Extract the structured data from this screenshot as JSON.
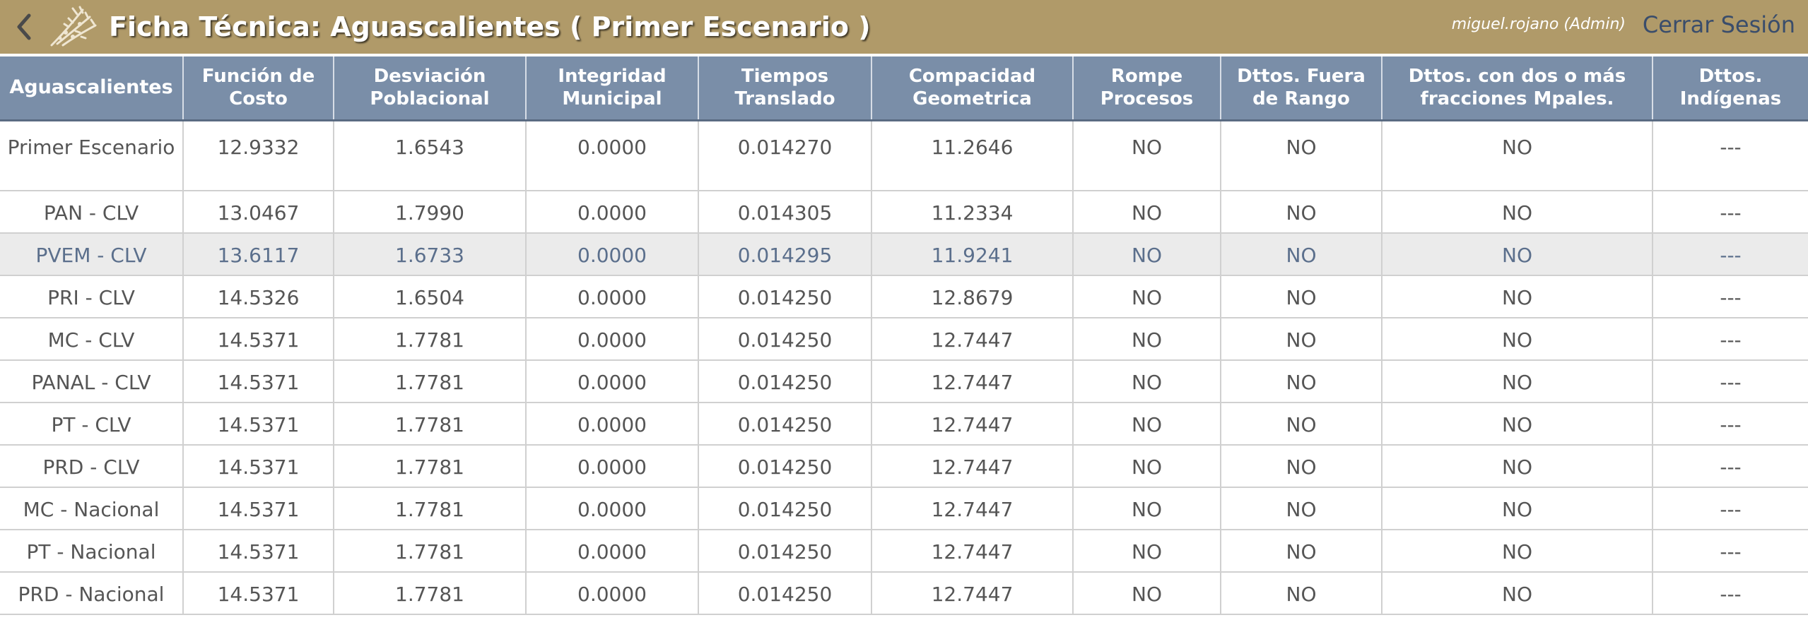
{
  "header": {
    "title": "Ficha Técnica: Aguascalientes ( Primer Escenario )",
    "user": "miguel.rojano (Admin)",
    "logout": "Cerrar Sesión",
    "back_icon": "chevron-left-icon",
    "logo_icon": "logo-icon",
    "bar_color": "#b09a69"
  },
  "table": {
    "header_color": "#7a8ea8",
    "headers": [
      "Aguascalientes",
      "Función de Costo",
      "Desviación Poblacional",
      "Integridad Municipal",
      "Tiempos Translado",
      "Compacidad Geometrica",
      "Rompe Procesos",
      "Dttos. Fuera de Rango",
      "Dttos. con dos o más fracciones Mpales.",
      "Dttos. Indígenas"
    ],
    "rows": [
      [
        "Primer Escenario",
        "12.9332",
        "1.6543",
        "0.0000",
        "0.014270",
        "11.2646",
        "NO",
        "NO",
        "NO",
        "---"
      ],
      [
        "PAN - CLV",
        "13.0467",
        "1.7990",
        "0.0000",
        "0.014305",
        "11.2334",
        "NO",
        "NO",
        "NO",
        "---"
      ],
      [
        "PVEM - CLV",
        "13.6117",
        "1.6733",
        "0.0000",
        "0.014295",
        "11.9241",
        "NO",
        "NO",
        "NO",
        "---"
      ],
      [
        "PRI - CLV",
        "14.5326",
        "1.6504",
        "0.0000",
        "0.014250",
        "12.8679",
        "NO",
        "NO",
        "NO",
        "---"
      ],
      [
        "MC - CLV",
        "14.5371",
        "1.7781",
        "0.0000",
        "0.014250",
        "12.7447",
        "NO",
        "NO",
        "NO",
        "---"
      ],
      [
        "PANAL - CLV",
        "14.5371",
        "1.7781",
        "0.0000",
        "0.014250",
        "12.7447",
        "NO",
        "NO",
        "NO",
        "---"
      ],
      [
        "PT - CLV",
        "14.5371",
        "1.7781",
        "0.0000",
        "0.014250",
        "12.7447",
        "NO",
        "NO",
        "NO",
        "---"
      ],
      [
        "PRD - CLV",
        "14.5371",
        "1.7781",
        "0.0000",
        "0.014250",
        "12.7447",
        "NO",
        "NO",
        "NO",
        "---"
      ],
      [
        "MC - Nacional",
        "14.5371",
        "1.7781",
        "0.0000",
        "0.014250",
        "12.7447",
        "NO",
        "NO",
        "NO",
        "---"
      ],
      [
        "PT - Nacional",
        "14.5371",
        "1.7781",
        "0.0000",
        "0.014250",
        "12.7447",
        "NO",
        "NO",
        "NO",
        "---"
      ],
      [
        "PRD - Nacional",
        "14.5371",
        "1.7781",
        "0.0000",
        "0.014250",
        "12.7447",
        "NO",
        "NO",
        "NO",
        "---"
      ]
    ]
  }
}
